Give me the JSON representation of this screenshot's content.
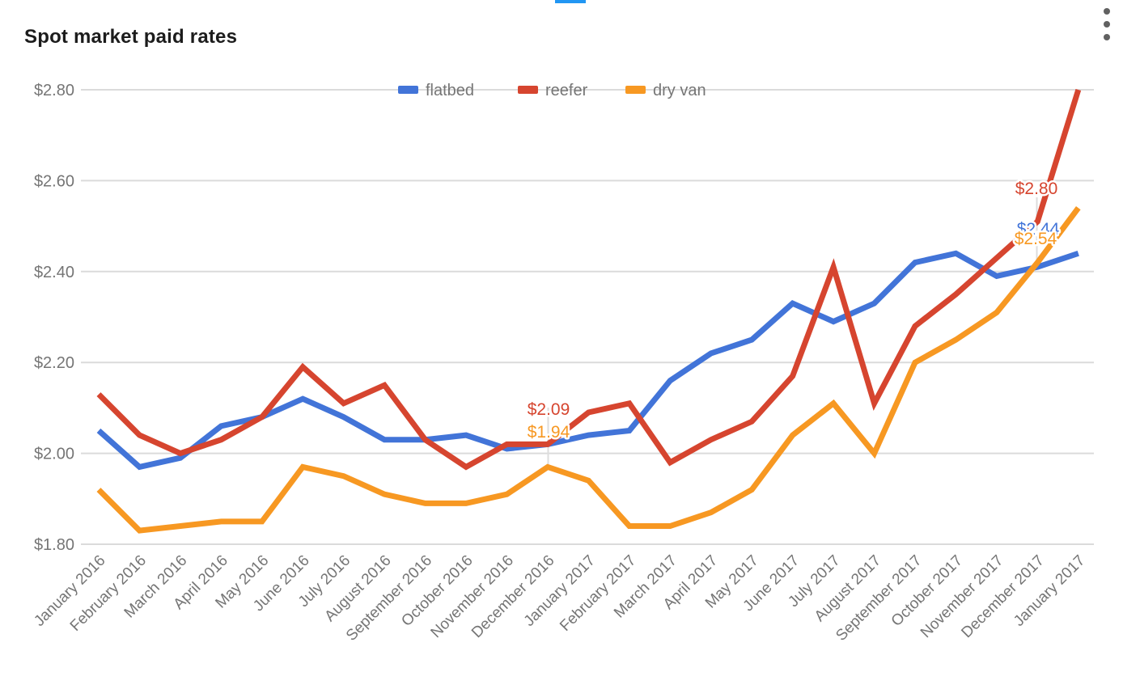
{
  "title": "Spot market paid rates",
  "menu": {
    "icon": "kebab-vertical-menu",
    "dots": 3
  },
  "colors": {
    "accent_bar": "#2196F3",
    "menu_icon": "#616161",
    "grid": "#DBDBDB",
    "axis_text": "#757575",
    "title_text": "#1C1C1C",
    "annotation_stem": "#DDDDDD",
    "flatbed": "#4274D8",
    "reefer": "#D6452F",
    "dry_van": "#F79822"
  },
  "legend": {
    "position": "top-center",
    "items": [
      {
        "label": "flatbed",
        "color": "#4274D8"
      },
      {
        "label": "reefer",
        "color": "#D6452F"
      },
      {
        "label": "dry van",
        "color": "#F79822"
      }
    ]
  },
  "y_axis": {
    "min": 1.8,
    "max": 2.8,
    "ticks": [
      {
        "label": "$1.80",
        "value": 1.8
      },
      {
        "label": "$2.00",
        "value": 2.0
      },
      {
        "label": "$2.20",
        "value": 2.2
      },
      {
        "label": "$2.40",
        "value": 2.4
      },
      {
        "label": "$2.60",
        "value": 2.6
      },
      {
        "label": "$2.80",
        "value": 2.8
      }
    ]
  },
  "chart_data": {
    "type": "line",
    "title": "Spot market paid rates",
    "categories": [
      "January 2016",
      "February 2016",
      "March 2016",
      "April 2016",
      "May 2016",
      "June 2016",
      "July 2016",
      "August 2016",
      "September 2016",
      "October 2016",
      "November 2016",
      "December 2016",
      "January 2017",
      "February 2017",
      "March 2017",
      "April 2017",
      "May 2017",
      "June 2017",
      "July 2017",
      "August 2017",
      "September 2017",
      "October 2017",
      "November 2017",
      "December 2017",
      "January 2017"
    ],
    "series": [
      {
        "name": "flatbed",
        "color": "#4274D8",
        "values": [
          2.05,
          1.97,
          1.99,
          2.06,
          2.08,
          2.12,
          2.08,
          2.03,
          2.03,
          2.04,
          2.01,
          2.02,
          2.04,
          2.05,
          2.16,
          2.22,
          2.25,
          2.33,
          2.29,
          2.33,
          2.42,
          2.44,
          2.39,
          2.41,
          2.44
        ]
      },
      {
        "name": "reefer",
        "color": "#D6452F",
        "values": [
          2.13,
          2.04,
          2.0,
          2.03,
          2.08,
          2.19,
          2.11,
          2.15,
          2.03,
          1.97,
          2.02,
          2.02,
          2.09,
          2.11,
          1.98,
          2.03,
          2.07,
          2.17,
          2.41,
          2.11,
          2.28,
          2.35,
          2.43,
          2.51,
          2.8
        ]
      },
      {
        "name": "dry van",
        "color": "#F79822",
        "values": [
          1.92,
          1.83,
          1.84,
          1.85,
          1.85,
          1.97,
          1.95,
          1.91,
          1.89,
          1.89,
          1.91,
          1.97,
          1.94,
          1.84,
          1.84,
          1.87,
          1.92,
          2.04,
          2.11,
          2.0,
          2.2,
          2.25,
          2.31,
          2.42,
          2.54
        ]
      }
    ],
    "ylim": [
      1.8,
      2.8
    ],
    "xlabel": "",
    "ylabel": "",
    "grid": "horizontal",
    "legend_position": "top-center",
    "x_tick_rotation": 45
  },
  "annotations": {
    "january_2017": [
      {
        "series": "reefer",
        "text": "$2.09",
        "color": "#D6452F"
      },
      {
        "series": "dry van",
        "text": "$1.94",
        "color": "#F79822"
      }
    ],
    "last_point": [
      {
        "series": "reefer",
        "text": "$2.80",
        "color": "#D6452F"
      },
      {
        "series": "flatbed",
        "text": "$2.44",
        "color": "#4274D8"
      },
      {
        "series": "dry van",
        "text": "$2.54",
        "color": "#F79822"
      }
    ]
  }
}
